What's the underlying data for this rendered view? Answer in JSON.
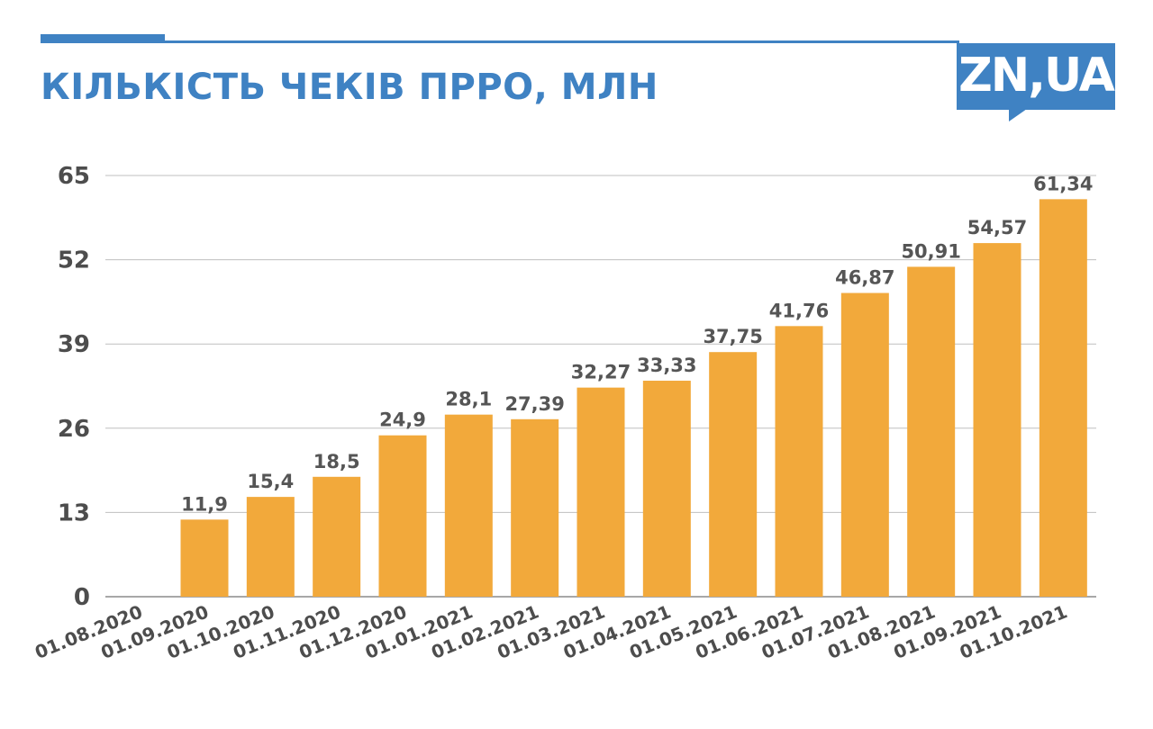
{
  "header": {
    "title": "КІЛЬКІСТЬ ЧЕКІВ ПРРО, МЛН",
    "logo_text": "ZN,UA"
  },
  "colors": {
    "accent": "#3f82c3",
    "bar": "#f2a93b",
    "grid": "#bfbfbf",
    "text": "#4d4d4d"
  },
  "chart_data": {
    "type": "bar",
    "title": "КІЛЬКІСТЬ ЧЕКІВ ПРРО, МЛН",
    "xlabel": "",
    "ylabel": "",
    "categories": [
      "01.08.2020",
      "01.09.2020",
      "01.10.2020",
      "01.11.2020",
      "01.12.2020",
      "01.01.2021",
      "01.02.2021",
      "01.03.2021",
      "01.04.2021",
      "01.05.2021",
      "01.06.2021",
      "01.07.2021",
      "01.08.2021",
      "01.09.2021",
      "01.10.2021"
    ],
    "values": [
      null,
      11.9,
      15.4,
      18.5,
      24.9,
      28.1,
      27.39,
      32.27,
      33.33,
      37.75,
      41.76,
      46.87,
      50.91,
      54.57,
      61.34
    ],
    "value_labels": [
      "",
      "11,9",
      "15,4",
      "18,5",
      "24,9",
      "28,1",
      "27,39",
      "32,27",
      "33,33",
      "37,75",
      "41,76",
      "46,87",
      "50,91",
      "54,57",
      "61,34"
    ],
    "ylim": [
      0,
      65
    ],
    "yticks": [
      0,
      13,
      26,
      39,
      52,
      65
    ],
    "grid": true,
    "legend": "none"
  }
}
